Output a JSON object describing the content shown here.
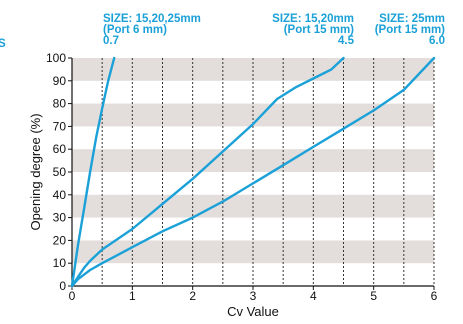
{
  "chart_data": {
    "type": "line",
    "title": "",
    "xlabel": "Cv Value",
    "ylabel": "Opening degree (%)",
    "xlim": [
      0,
      6
    ],
    "ylim": [
      0,
      100
    ],
    "x_ticks": [
      "0",
      "1",
      "2",
      "3",
      "4",
      "5",
      "6"
    ],
    "y_ticks": [
      "0",
      "10",
      "20",
      "30",
      "40",
      "50",
      "60",
      "70",
      "80",
      "90",
      "100"
    ],
    "grid": "shaded horizontal bands, dotted vertical lines every 0.5",
    "colors": {
      "line": "#1ba1d8",
      "band": "#e3dedc",
      "annotation": "#1ba1d8"
    },
    "edge_label": "S",
    "series": [
      {
        "x": [
          0,
          0.1,
          0.2,
          0.3,
          0.4,
          0.5,
          0.6,
          0.7
        ],
        "y": [
          0,
          18,
          34,
          50,
          65,
          78,
          90,
          100
        ]
      },
      {
        "x": [
          0,
          0.1,
          0.2,
          0.3,
          0.5,
          1.0,
          1.5,
          2.0,
          2.5,
          3.0,
          3.4,
          3.7,
          4.0,
          4.3,
          4.5
        ],
        "y": [
          0,
          4,
          8,
          11,
          16,
          25,
          36,
          47,
          59,
          71,
          82,
          87,
          91,
          95,
          100
        ]
      },
      {
        "x": [
          0,
          0.1,
          0.2,
          0.3,
          0.5,
          1.0,
          1.5,
          2.0,
          2.5,
          3.0,
          3.5,
          4.0,
          4.5,
          5.0,
          5.5,
          6.0
        ],
        "y": [
          0,
          3,
          5,
          7,
          10,
          17,
          24,
          30,
          37,
          45,
          53,
          61,
          69,
          77,
          86,
          100
        ]
      }
    ],
    "annotations": [
      {
        "lines": [
          "SIZE: 15,20,25mm",
          "(Port 6 mm)",
          "0.7"
        ]
      },
      {
        "lines": [
          "SIZE: 15,20mm",
          "(Port 15 mm)",
          "4.5"
        ]
      },
      {
        "lines": [
          "SIZE: 25mm",
          "(Port 15 mm)",
          "6.0"
        ]
      }
    ]
  }
}
